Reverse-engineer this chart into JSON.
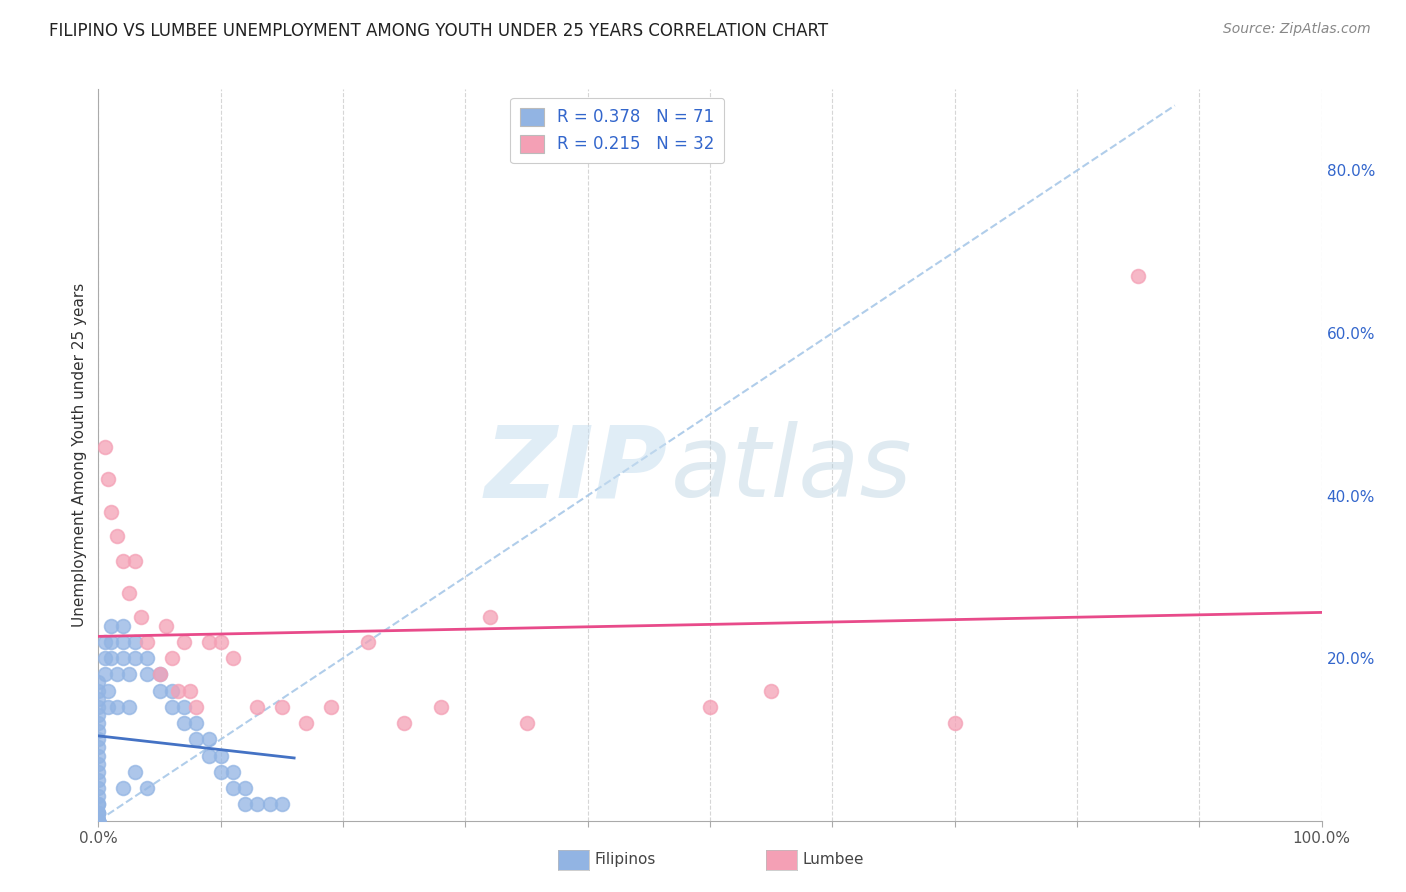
{
  "title": "FILIPINO VS LUMBEE UNEMPLOYMENT AMONG YOUTH UNDER 25 YEARS CORRELATION CHART",
  "source": "Source: ZipAtlas.com",
  "ylabel": "Unemployment Among Youth under 25 years",
  "xlim": [
    0.0,
    1.0
  ],
  "ylim": [
    0.0,
    0.9
  ],
  "x_tick_pos": [
    0.0,
    0.1,
    0.2,
    0.3,
    0.4,
    0.5,
    0.6,
    0.7,
    0.8,
    0.9,
    1.0
  ],
  "x_tick_labels": [
    "0.0%",
    "",
    "",
    "",
    "",
    "",
    "",
    "",
    "",
    "",
    "100.0%"
  ],
  "y_tick_pos_right": [
    0.2,
    0.4,
    0.6,
    0.8
  ],
  "y_tick_labels_right": [
    "20.0%",
    "40.0%",
    "60.0%",
    "80.0%"
  ],
  "filipino_R": 0.378,
  "filipino_N": 71,
  "lumbee_R": 0.215,
  "lumbee_N": 32,
  "filipino_color": "#92b4e3",
  "lumbee_color": "#f4a0b5",
  "filipino_line_color": "#4472c4",
  "lumbee_line_color": "#e84b8a",
  "diagonal_color": "#a8c8e8",
  "legend_color": "#3366cc",
  "filipino_x": [
    0.0,
    0.0,
    0.0,
    0.0,
    0.0,
    0.0,
    0.0,
    0.0,
    0.0,
    0.0,
    0.0,
    0.0,
    0.0,
    0.0,
    0.0,
    0.0,
    0.0,
    0.0,
    0.0,
    0.0,
    0.0,
    0.0,
    0.0,
    0.0,
    0.0,
    0.0,
    0.0,
    0.0,
    0.0,
    0.0,
    0.005,
    0.005,
    0.005,
    0.008,
    0.008,
    0.01,
    0.01,
    0.01,
    0.015,
    0.015,
    0.02,
    0.02,
    0.02,
    0.025,
    0.025,
    0.03,
    0.03,
    0.04,
    0.04,
    0.05,
    0.05,
    0.06,
    0.06,
    0.07,
    0.07,
    0.08,
    0.08,
    0.09,
    0.09,
    0.1,
    0.1,
    0.11,
    0.11,
    0.12,
    0.12,
    0.13,
    0.14,
    0.15,
    0.02,
    0.03,
    0.04
  ],
  "filipino_y": [
    0.0,
    0.0,
    0.0,
    0.0,
    0.0,
    0.0,
    0.0,
    0.0,
    0.0,
    0.0,
    0.01,
    0.01,
    0.01,
    0.02,
    0.02,
    0.03,
    0.04,
    0.05,
    0.06,
    0.07,
    0.08,
    0.09,
    0.1,
    0.11,
    0.12,
    0.13,
    0.14,
    0.15,
    0.16,
    0.17,
    0.22,
    0.2,
    0.18,
    0.16,
    0.14,
    0.24,
    0.22,
    0.2,
    0.18,
    0.14,
    0.24,
    0.22,
    0.2,
    0.18,
    0.14,
    0.22,
    0.2,
    0.2,
    0.18,
    0.18,
    0.16,
    0.16,
    0.14,
    0.14,
    0.12,
    0.12,
    0.1,
    0.1,
    0.08,
    0.08,
    0.06,
    0.06,
    0.04,
    0.04,
    0.02,
    0.02,
    0.02,
    0.02,
    0.04,
    0.06,
    0.04
  ],
  "lumbee_x": [
    0.005,
    0.008,
    0.01,
    0.015,
    0.02,
    0.025,
    0.03,
    0.035,
    0.04,
    0.05,
    0.055,
    0.06,
    0.065,
    0.07,
    0.075,
    0.08,
    0.09,
    0.1,
    0.11,
    0.13,
    0.15,
    0.17,
    0.19,
    0.22,
    0.25,
    0.28,
    0.32,
    0.35,
    0.5,
    0.55,
    0.7,
    0.85
  ],
  "lumbee_y": [
    0.46,
    0.42,
    0.38,
    0.35,
    0.32,
    0.28,
    0.32,
    0.25,
    0.22,
    0.18,
    0.24,
    0.2,
    0.16,
    0.22,
    0.16,
    0.14,
    0.22,
    0.22,
    0.2,
    0.14,
    0.14,
    0.12,
    0.14,
    0.22,
    0.12,
    0.14,
    0.25,
    0.12,
    0.14,
    0.16,
    0.12,
    0.67
  ]
}
